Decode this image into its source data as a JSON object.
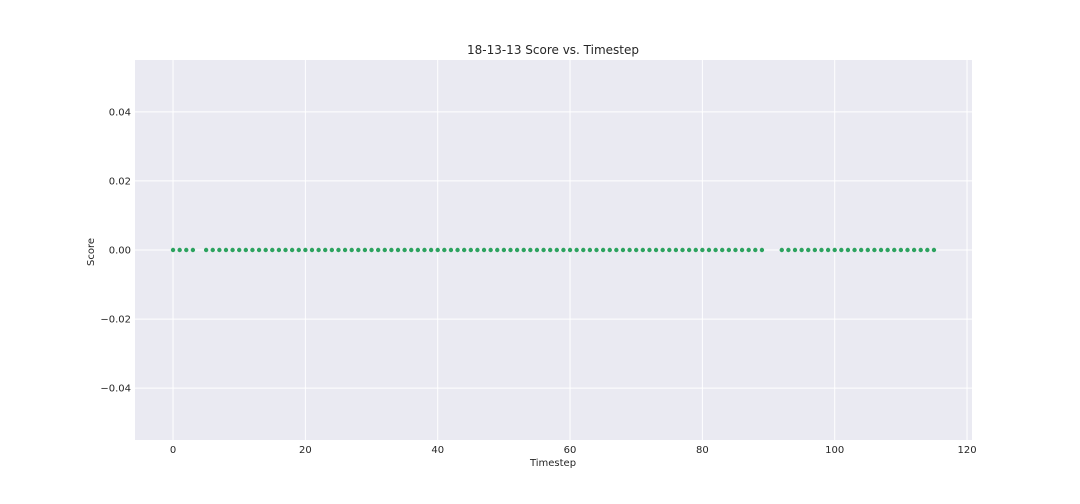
{
  "chart_data": {
    "type": "scatter",
    "title": "18-13-13 Score vs. Timestep",
    "xlabel": "Timestep",
    "ylabel": "Score",
    "xlim": [
      -5.75,
      120.75
    ],
    "ylim": [
      -0.055,
      0.055
    ],
    "xticks": [
      0,
      20,
      40,
      60,
      80,
      100,
      120
    ],
    "xtick_labels": [
      "0",
      "20",
      "40",
      "60",
      "80",
      "100",
      "120"
    ],
    "yticks": [
      -0.04,
      -0.02,
      0.0,
      0.02,
      0.04
    ],
    "ytick_labels": [
      "−0.04",
      "−0.02",
      "0.00",
      "0.02",
      "0.04"
    ],
    "grid": true,
    "series": [
      {
        "name": "Score",
        "color": "#2ca25f",
        "x": [
          0,
          1,
          2,
          3,
          5,
          6,
          7,
          8,
          9,
          10,
          11,
          12,
          13,
          14,
          15,
          16,
          17,
          18,
          19,
          20,
          21,
          22,
          23,
          24,
          25,
          26,
          27,
          28,
          29,
          30,
          31,
          32,
          33,
          34,
          35,
          36,
          37,
          38,
          39,
          40,
          41,
          42,
          43,
          44,
          45,
          46,
          47,
          48,
          49,
          50,
          51,
          52,
          53,
          54,
          55,
          56,
          57,
          58,
          59,
          60,
          61,
          62,
          63,
          64,
          65,
          66,
          67,
          68,
          69,
          70,
          71,
          72,
          73,
          74,
          75,
          76,
          77,
          78,
          79,
          80,
          81,
          82,
          83,
          84,
          85,
          86,
          87,
          88,
          89,
          92,
          93,
          94,
          95,
          96,
          97,
          98,
          99,
          100,
          101,
          102,
          103,
          104,
          105,
          106,
          107,
          108,
          109,
          110,
          111,
          112,
          113,
          114,
          115
        ],
        "y_constant": 0.0
      }
    ]
  },
  "colors": {
    "plot_bg": "#eaeaf2",
    "grid": "#ffffff",
    "text": "#262626",
    "marker": "#2ca25f"
  }
}
